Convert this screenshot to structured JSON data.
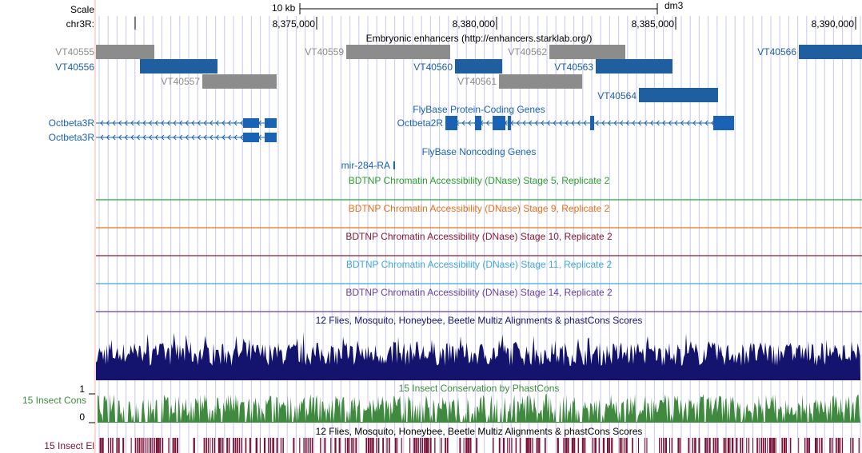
{
  "header": {
    "scale_label": "Scale",
    "chrom_label": "chr3R:",
    "scale_bar_label": "10 kb",
    "assembly": "dm3",
    "ticks": [
      "8,375,000",
      "8,380,000",
      "8,385,000",
      "8,390,000"
    ]
  },
  "enhancers": {
    "title": "Embryonic enhancers (http://enhancers.starklab.org/)",
    "colors": {
      "gray": "#8c8c8c",
      "blue": "#1f5fa0"
    },
    "items": [
      {
        "name": "VT40555",
        "color": "gray"
      },
      {
        "name": "VT40556",
        "color": "blue"
      },
      {
        "name": "VT40557",
        "color": "gray"
      },
      {
        "name": "VT40559",
        "color": "gray"
      },
      {
        "name": "VT40560",
        "color": "blue"
      },
      {
        "name": "VT40561",
        "color": "gray"
      },
      {
        "name": "VT40562",
        "color": "gray"
      },
      {
        "name": "VT40563",
        "color": "blue"
      },
      {
        "name": "VT40564",
        "color": "blue"
      },
      {
        "name": "VT40566",
        "color": "blue"
      }
    ]
  },
  "protein_genes": {
    "title": "FlyBase Protein-Coding Genes",
    "color": "#1a62b4",
    "genes": [
      "Octbeta3R",
      "Octbeta3R",
      "Octbeta2R"
    ]
  },
  "noncoding_genes": {
    "title": "FlyBase Noncoding Genes",
    "genes": [
      "mir-284-RA"
    ]
  },
  "dnase_tracks": [
    {
      "title": "BDTNP Chromatin Accessibility (DNase) Stage 5, Replicate 2",
      "color": "#2ca02c"
    },
    {
      "title": "BDTNP Chromatin Accessibility (DNase) Stage 9, Replicate 2",
      "color": "#e8711a"
    },
    {
      "title": "BDTNP Chromatin Accessibility (DNase) Stage 10, Replicate 2",
      "color": "#8b1a2e"
    },
    {
      "title": "BDTNP Chromatin Accessibility (DNase) Stage 11, Replicate 2",
      "color": "#3fa9d6"
    },
    {
      "title": "BDTNP Chromatin Accessibility (DNase) Stage 14, Replicate 2",
      "color": "#6b3fa0"
    }
  ],
  "multiz": {
    "title": "12 Flies, Mosquito, Honeybee, Beetle Multiz Alignments & phastCons Scores",
    "color": "#14146e"
  },
  "phastcons": {
    "track_label": "15 Insect Cons",
    "title": "15 Insect Conservation by PhastCons",
    "axis_max": "1",
    "axis_min": "0",
    "color": "#3f8a3f"
  },
  "elements": {
    "track_label": "15 Insect El",
    "title": "12 Flies, Mosquito, Honeybee, Beetle Multiz Alignments & phastCons Scores",
    "color": "#7a1236"
  },
  "colors": {
    "grid": "#c8c8f0",
    "left_border": "#ffb0b0"
  }
}
